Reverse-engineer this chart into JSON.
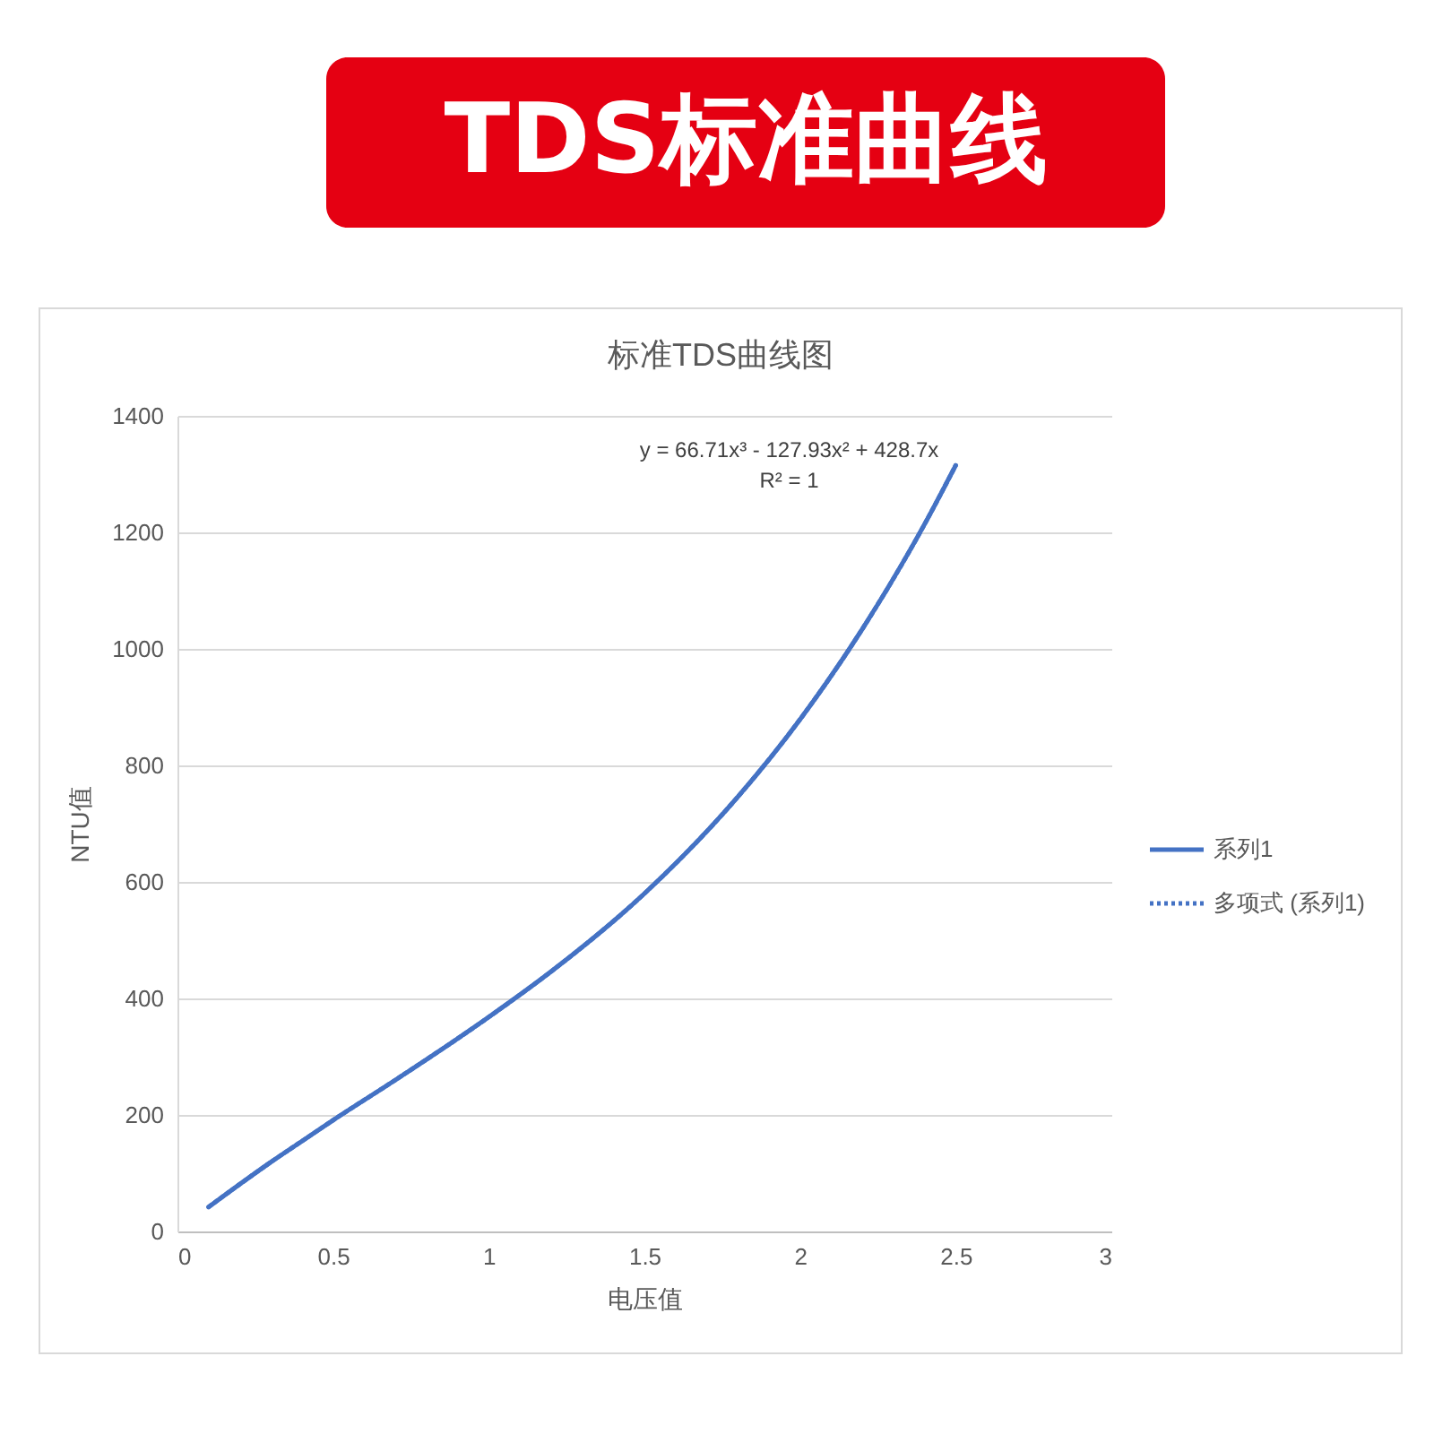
{
  "chart_data": {
    "type": "line",
    "title": "TDS标准曲线",
    "subtitle": "标准TDS曲线图",
    "xlabel": "电压值",
    "ylabel": "NTU值",
    "annotations": [
      "y = 66.71x³ - 127.93x² + 428.7x",
      "R² = 1"
    ],
    "xlim": [
      0,
      3
    ],
    "xticks": [
      0,
      0.5,
      1,
      1.5,
      2,
      2.5,
      3
    ],
    "ylim": [
      0,
      1400
    ],
    "yticks": [
      0,
      200,
      400,
      600,
      800,
      1000,
      1200,
      1400
    ],
    "grid": "y",
    "legend": "right",
    "series": [
      {
        "name": "系列1",
        "color": "#4472c4",
        "line_style": "solid",
        "x": [
          0.1,
          0.2,
          0.3,
          0.4,
          0.5,
          0.7,
          1.0,
          1.2,
          1.5,
          1.8,
          2.0,
          2.2,
          2.4,
          2.5
        ],
        "values": [
          42,
          81,
          119,
          155,
          191,
          260,
          368,
          446,
          580,
          746,
          879,
          1034,
          1214,
          1315
        ]
      },
      {
        "name": "多项式 (系列1)",
        "type": "line",
        "color": "#4472c4",
        "line_style": "dotted",
        "x": [
          0.1,
          0.2,
          0.3,
          0.4,
          0.5,
          0.7,
          1.0,
          1.2,
          1.5,
          1.8,
          2.0,
          2.2,
          2.4,
          2.5
        ],
        "values": [
          42,
          81,
          119,
          155,
          191,
          260,
          368,
          446,
          580,
          746,
          879,
          1034,
          1214,
          1315
        ]
      }
    ]
  }
}
